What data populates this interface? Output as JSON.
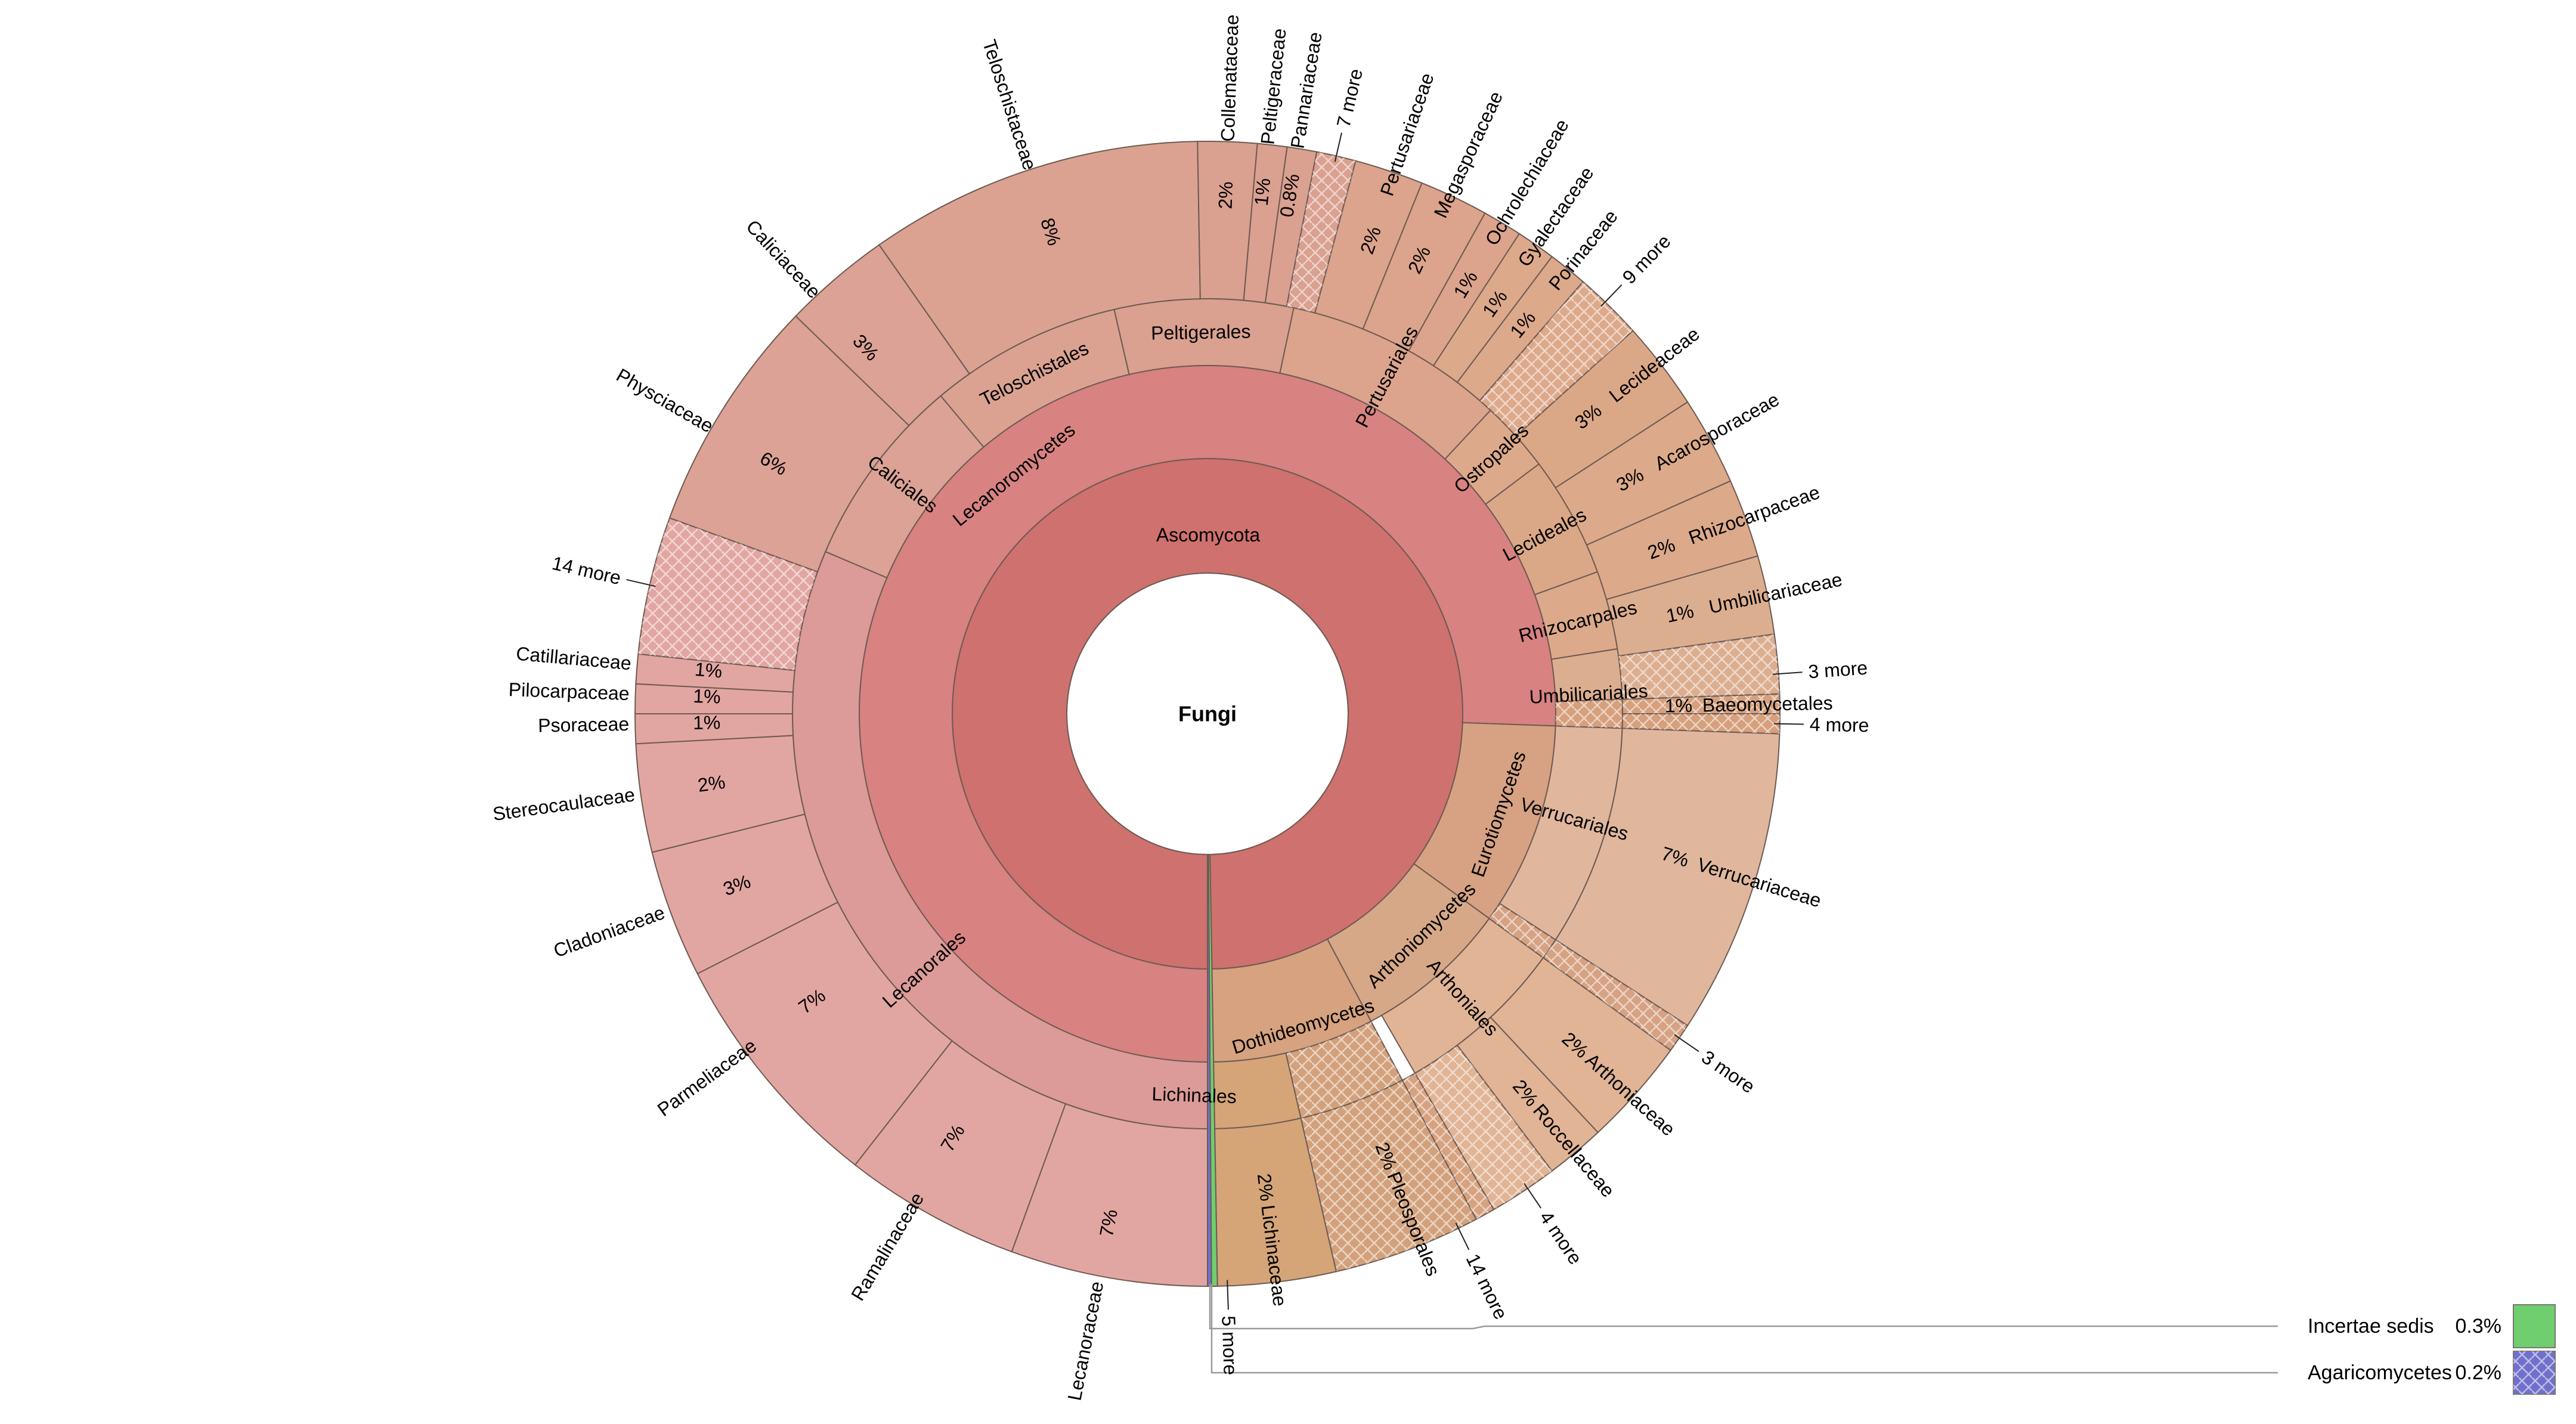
{
  "chart_data": {
    "type": "sunburst",
    "root": "Fungi",
    "colors": {
      "ascomycota": "#cf716e",
      "lecanoromycetes": "#d88282",
      "lecanorales": "#dc9a98",
      "lecanorales_families": "#e2a6a2",
      "caliciales": "#dba295",
      "teloschistales": "#dba292",
      "peltigerales": "#daa090",
      "pertusariales": "#dca48c",
      "ostropales": "#dda98b",
      "lecideales": "#dba887",
      "rhizocarpales": "#dcaa8a",
      "umbilicariales": "#dcae90",
      "baeomycetales": "#d6a07c",
      "eurotiomycetes": "#d6a283",
      "verrucariales": "#e0b79d",
      "arthoniomycetes": "#d7a887",
      "arthoniales": "#e0b495",
      "dothideomycetes": "#d7a27f",
      "pleosporales": "#d2a17b",
      "lichinales": "#d5a578",
      "incertae_sedis": "#6fce6e",
      "agaricomycetes": "#7070cc"
    },
    "ascomycota_label": "Ascomycota",
    "classes": [
      "Lecanoromycetes",
      "Eurotiomycetes",
      "Arthoniomycetes",
      "Dothideomycetes"
    ],
    "orders": [
      "Lecanorales",
      "Caliciales",
      "Teloschistales",
      "Peltigerales",
      "Pertusariales",
      "Ostropales",
      "Lecideales",
      "Rhizocarpales",
      "Umbilicariales",
      "Verrucariales",
      "Arthoniales",
      "Pleosporales",
      "Lichinales"
    ],
    "families": [
      {
        "name": "Lecanoraceae",
        "pct": "7%"
      },
      {
        "name": "Ramalinaceae",
        "pct": "7%"
      },
      {
        "name": "Parmeliaceae",
        "pct": "7%"
      },
      {
        "name": "Cladoniaceae",
        "pct": "3%"
      },
      {
        "name": "Stereocaulaceae",
        "pct": "2%"
      },
      {
        "name": "Psoraceae",
        "pct": "1%"
      },
      {
        "name": "Pilocarpaceae",
        "pct": "1%"
      },
      {
        "name": "Catillariaceae",
        "pct": "1%"
      },
      {
        "name": "Physciaceae",
        "pct": "6%"
      },
      {
        "name": "Caliciaceae",
        "pct": "3%"
      },
      {
        "name": "Teloschistaceae",
        "pct": "8%"
      },
      {
        "name": "Collemataceae",
        "pct": "2%"
      },
      {
        "name": "Peltigeraceae",
        "pct": "1%"
      },
      {
        "name": "Pannariaceae",
        "pct": "0.8%"
      },
      {
        "name": "Pertusariaceae",
        "pct": "2%"
      },
      {
        "name": "Megasporaceae",
        "pct": "2%"
      },
      {
        "name": "Ochrolechiaceae",
        "pct": "1%"
      },
      {
        "name": "Gyalectaceae",
        "pct": "1%"
      },
      {
        "name": "Porinaceae",
        "pct": "1%"
      },
      {
        "name": "Lecideaceae",
        "pct": "3%"
      },
      {
        "name": "Acarosporaceae",
        "pct": "3%"
      },
      {
        "name": "Rhizocarpaceae",
        "pct": "2%"
      },
      {
        "name": "Umbilicariaceae",
        "pct": "1%"
      },
      {
        "name": "Baeomycetales",
        "pct": "1%"
      },
      {
        "name": "Verrucariaceae",
        "pct": "7%"
      },
      {
        "name": "Arthoniaceae",
        "pct": "2%"
      },
      {
        "name": "Roccellaceae",
        "pct": "2%"
      },
      {
        "name": "Pleosporales",
        "pct": "2%"
      },
      {
        "name": "Lichinaceae",
        "pct": "2%"
      }
    ],
    "more_labels": [
      "14 more",
      "7 more",
      "9 more",
      "3 more",
      "4 more",
      "3 more",
      "4 more",
      "14 more",
      "5 more"
    ],
    "legend": [
      {
        "name": "Incertae sedis",
        "pct": "0.3%",
        "color": "#6fce6e"
      },
      {
        "name": "Agaricomycetes",
        "pct": "0.2%",
        "color": "#7070cc"
      }
    ]
  }
}
